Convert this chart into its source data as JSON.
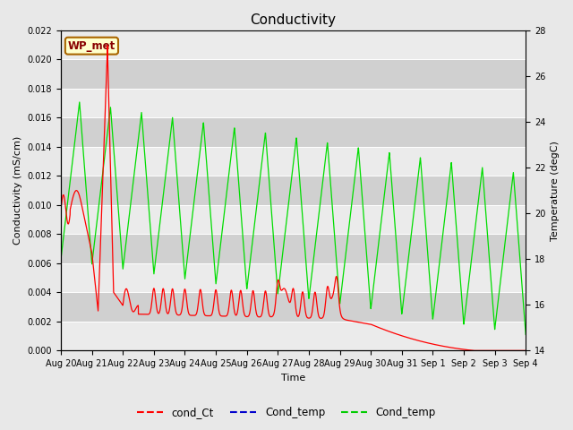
{
  "title": "Conductivity",
  "xlabel": "Time",
  "ylabel_left": "Conductivity (mS/cm)",
  "ylabel_right": "Temperature (degC)",
  "ylim_left": [
    0.0,
    0.022
  ],
  "ylim_right": [
    14,
    28
  ],
  "yticks_left": [
    0.0,
    0.002,
    0.004,
    0.006,
    0.008,
    0.01,
    0.012,
    0.014,
    0.016,
    0.018,
    0.02,
    0.022
  ],
  "yticks_right": [
    14,
    16,
    18,
    20,
    22,
    24,
    26,
    28
  ],
  "xticklabels": [
    "Aug 20",
    "Aug 21",
    "Aug 22",
    "Aug 23",
    "Aug 24",
    "Aug 25",
    "Aug 26",
    "Aug 27",
    "Aug 28",
    "Aug 29",
    "Aug 30",
    "Aug 31",
    "Sep 1",
    "Sep 2",
    "Sep 3",
    "Sep 4"
  ],
  "legend_labels": [
    "cond_Ct",
    "Cond_temp",
    "Cond_temp"
  ],
  "legend_colors": [
    "#ff0000",
    "#0000cc",
    "#00cc00"
  ],
  "watermark_text": "WP_met",
  "watermark_bg": "#ffffcc",
  "watermark_border": "#aa6600",
  "watermark_text_color": "#880000",
  "fig_bg_color": "#e8e8e8",
  "plot_bg_color": "#dcdcdc",
  "band_color_light": "#ebebeb",
  "band_color_dark": "#d0d0d0",
  "title_fontsize": 11,
  "axis_fontsize": 8,
  "tick_fontsize": 7
}
